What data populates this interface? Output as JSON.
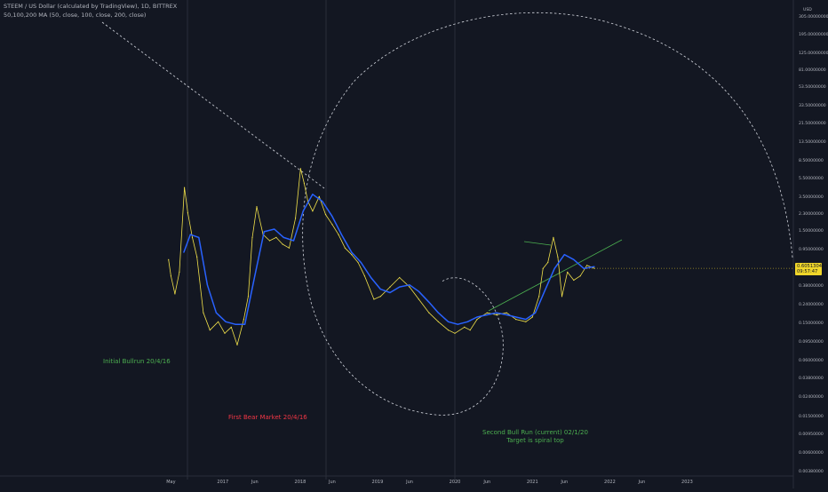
{
  "header": {
    "title": "STEEM / US Dollar (calculated by TradingView), 1D, BITTREX",
    "ma_legend": "50,100,200 MA (50, close, 100, close, 200, close)"
  },
  "annotations": {
    "initial_bullrun": "Initial Bullrun 20/4/16",
    "first_bear": "First Bear Market 20/4/16",
    "second_bull_line1": "Second Bull Run (current) 02/1/20",
    "second_bull_line2": "Target is spiral top"
  },
  "price_tag": {
    "price": "0.60513042",
    "countdown": "09:57:47"
  },
  "colors": {
    "background": "#131722",
    "price_line": "#f0e04a",
    "moving_average": "#2962ff",
    "trend_line": "#4caf50",
    "annotation_green": "#4caf50",
    "annotation_red": "#f23645",
    "dashed_lines": "#d1d4dc",
    "price_tag": "#f0d62a"
  },
  "chart_data": {
    "type": "line",
    "symbol": "STEEM / US Dollar",
    "interval": "1D",
    "exchange": "BITTREX",
    "y_scale": "log",
    "y_unit": "USD",
    "y_tick_labels": [
      "1900.00000000",
      "1200.00000000",
      "760.00000000",
      "480.00000000",
      "305.00000000",
      "195.00000000",
      "125.00000000",
      "81.00000000",
      "53.50000000",
      "33.50000000",
      "21.50000000",
      "13.50000000",
      "8.50000000",
      "5.50000000",
      "3.50000000",
      "2.30000000",
      "1.50000000",
      "0.95000000",
      "0.60000000",
      "0.38000000",
      "0.24000000",
      "0.15000000",
      "0.09500000",
      "0.06000000",
      "0.03800000",
      "0.02400000",
      "0.01500000",
      "0.00950000",
      "0.00600000",
      "0.00380000",
      "0.00240000",
      "0.00150000",
      "0.00095000",
      "0.00060000",
      "0.00038000"
    ],
    "x_tick_labels": [
      "May",
      "2017",
      "Jun",
      "2018",
      "Jun",
      "2019",
      "Jun",
      "2020",
      "Jun",
      "2021",
      "Jun",
      "2022",
      "Jun",
      "2023"
    ],
    "series": [
      {
        "x": [
          "2016-04-20",
          "2016-05-01",
          "2016-05-20",
          "2016-06-10",
          "2016-07-04",
          "2016-07-20",
          "2016-08-10",
          "2016-09-01",
          "2016-10-01",
          "2016-11-01",
          "2016-12-10",
          "2017-01-10",
          "2017-02-10",
          "2017-03-10",
          "2017-04-10",
          "2017-05-01",
          "2017-05-20",
          "2017-06-10",
          "2017-07-10",
          "2017-08-10",
          "2017-09-10",
          "2017-10-10",
          "2017-11-10",
          "2017-12-10",
          "2018-01-03",
          "2018-01-20",
          "2018-02-06",
          "2018-03-01",
          "2018-04-01",
          "2018-05-01",
          "2018-06-01",
          "2018-07-01",
          "2018-08-01",
          "2018-09-01",
          "2018-10-01",
          "2018-11-01",
          "2018-12-15",
          "2019-01-15",
          "2019-03-01",
          "2019-04-15",
          "2019-06-01",
          "2019-07-15",
          "2019-09-01",
          "2019-10-15",
          "2019-12-01",
          "2020-01-01",
          "2020-02-15",
          "2020-03-13",
          "2020-04-15",
          "2020-06-01",
          "2020-07-15",
          "2020-09-01",
          "2020-10-15",
          "2020-12-01",
          "2021-01-01",
          "2021-02-01",
          "2021-02-20",
          "2021-03-15",
          "2021-04-10",
          "2021-05-01",
          "2021-05-20",
          "2021-06-15",
          "2021-07-15",
          "2021-08-15",
          "2021-09-15",
          "2021-10-20"
        ],
        "values": [
          0.75,
          0.5,
          0.32,
          0.55,
          4.5,
          2.4,
          1.3,
          0.8,
          0.2,
          0.13,
          0.16,
          0.12,
          0.14,
          0.09,
          0.17,
          0.3,
          1.3,
          2.8,
          1.4,
          1.2,
          1.3,
          1.1,
          1.0,
          2.1,
          7.2,
          5.0,
          3.2,
          2.5,
          3.6,
          2.3,
          1.8,
          1.4,
          1.0,
          0.85,
          0.7,
          0.5,
          0.28,
          0.3,
          0.38,
          0.48,
          0.38,
          0.28,
          0.2,
          0.16,
          0.13,
          0.12,
          0.14,
          0.13,
          0.17,
          0.2,
          0.19,
          0.2,
          0.17,
          0.16,
          0.18,
          0.3,
          0.6,
          0.7,
          1.3,
          0.8,
          0.3,
          0.55,
          0.45,
          0.5,
          0.65,
          0.605
        ]
      },
      {
        "x": [
          "2016-07-01",
          "2016-08-01",
          "2016-09-10",
          "2016-10-20",
          "2016-12-01",
          "2017-01-15",
          "2017-03-01",
          "2017-04-15",
          "2017-06-01",
          "2017-07-15",
          "2017-09-01",
          "2017-10-15",
          "2017-12-01",
          "2018-01-15",
          "2018-03-01",
          "2018-04-15",
          "2018-06-01",
          "2018-07-15",
          "2018-09-01",
          "2018-10-15",
          "2018-12-01",
          "2019-01-15",
          "2019-03-01",
          "2019-04-15",
          "2019-06-01",
          "2019-07-15",
          "2019-09-01",
          "2019-10-15",
          "2019-12-01",
          "2020-01-15",
          "2020-03-01",
          "2020-04-15",
          "2020-06-01",
          "2020-07-15",
          "2020-09-01",
          "2020-10-15",
          "2020-12-01",
          "2021-01-15",
          "2021-03-01",
          "2021-04-15",
          "2021-06-01",
          "2021-07-15",
          "2021-09-01",
          "2021-10-20"
        ],
        "values": [
          0.9,
          1.4,
          1.3,
          0.4,
          0.2,
          0.16,
          0.15,
          0.15,
          0.5,
          1.5,
          1.6,
          1.3,
          1.2,
          2.5,
          3.8,
          3.2,
          2.2,
          1.4,
          0.9,
          0.7,
          0.48,
          0.36,
          0.33,
          0.38,
          0.4,
          0.34,
          0.26,
          0.2,
          0.16,
          0.15,
          0.16,
          0.18,
          0.19,
          0.2,
          0.19,
          0.18,
          0.17,
          0.2,
          0.35,
          0.6,
          0.85,
          0.75,
          0.6,
          0.63
        ]
      }
    ],
    "current_price": 0.60513042
  }
}
